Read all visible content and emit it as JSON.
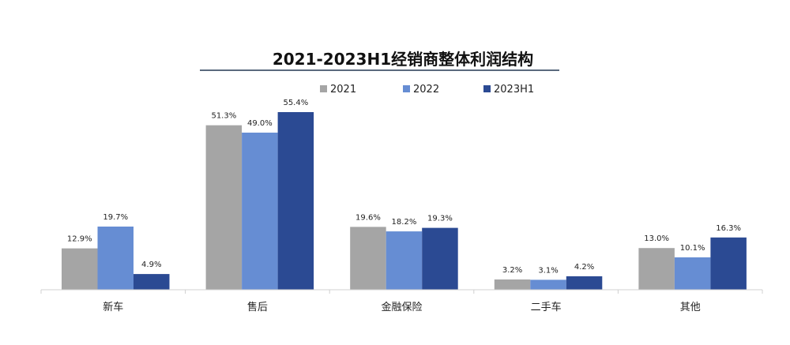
{
  "chart_data": {
    "type": "bar",
    "title": "2021-2023H1经销商整体利润结构",
    "categories": [
      "新车",
      "售后",
      "金融保险",
      "二手车",
      "其他"
    ],
    "series": [
      {
        "name": "2021",
        "color": "#A5A5A5",
        "values": [
          12.9,
          51.3,
          19.6,
          3.2,
          13.0
        ],
        "labels": [
          "12.9%",
          "51.3%",
          "19.6%",
          "3.2%",
          "13.0%"
        ]
      },
      {
        "name": "2022",
        "color": "#668DD3",
        "values": [
          19.7,
          49.0,
          18.2,
          3.1,
          10.1
        ],
        "labels": [
          "19.7%",
          "49.0%",
          "18.2%",
          "3.1%",
          "10.1%"
        ]
      },
      {
        "name": "2023H1",
        "color": "#2B4A93",
        "values": [
          4.9,
          55.4,
          19.3,
          4.2,
          16.3
        ],
        "labels": [
          "4.9%",
          "55.4%",
          "19.3%",
          "4.2%",
          "16.3%"
        ]
      }
    ],
    "unit": "%",
    "ylim": [
      0,
      60
    ],
    "grid": false,
    "legend": "top",
    "xlabel": "",
    "ylabel": ""
  }
}
